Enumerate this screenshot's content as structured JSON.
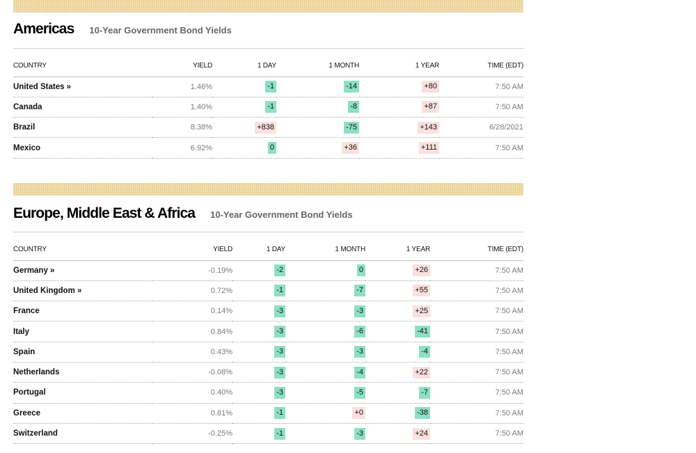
{
  "americas": {
    "title": "Americas",
    "subtitle": "10-Year Government Bond Yields",
    "headers": {
      "country": "COUNTRY",
      "yield": "YIELD",
      "day": "1 DAY",
      "month": "1 MONTH",
      "year": "1 YEAR",
      "time": "TIME (EDT)"
    },
    "rows": [
      {
        "country": "United States »",
        "yield": "1.46%",
        "day": "-1",
        "month": "-14",
        "year": "+80",
        "time": "7:50 AM"
      },
      {
        "country": "Canada",
        "yield": "1.40%",
        "day": "-1",
        "month": "-8",
        "year": "+87",
        "time": "7:50 AM"
      },
      {
        "country": "Brazil",
        "yield": "8.38%",
        "day": "+838",
        "month": "-75",
        "year": "+143",
        "time": "6/28/2021"
      },
      {
        "country": "Mexico",
        "yield": "6.92%",
        "day": "0",
        "month": "+36",
        "year": "+111",
        "time": "7:50 AM"
      }
    ]
  },
  "emea": {
    "title": "Europe, Middle East & Africa",
    "subtitle": "10-Year Government Bond Yields",
    "headers": {
      "country": "COUNTRY",
      "yield": "YIELD",
      "day": "1 DAY",
      "month": "1 MONTH",
      "year": "1 YEAR",
      "time": "TIME (EDT)"
    },
    "rows": [
      {
        "country": "Germany »",
        "yield": "-0.19%",
        "day": "-2",
        "month": "0",
        "year": "+26",
        "time": "7:50 AM"
      },
      {
        "country": "United Kingdom »",
        "yield": "0.72%",
        "day": "-1",
        "month": "-7",
        "year": "+55",
        "time": "7:50 AM"
      },
      {
        "country": "France",
        "yield": "0.14%",
        "day": "-3",
        "month": "-3",
        "year": "+25",
        "time": "7:50 AM"
      },
      {
        "country": "Italy",
        "yield": "0.84%",
        "day": "-3",
        "month": "-6",
        "year": "-41",
        "time": "7:50 AM"
      },
      {
        "country": "Spain",
        "yield": "0.43%",
        "day": "-3",
        "month": "-3",
        "year": "-4",
        "time": "7:50 AM"
      },
      {
        "country": "Netherlands",
        "yield": "-0.08%",
        "day": "-3",
        "month": "-4",
        "year": "+22",
        "time": "7:50 AM"
      },
      {
        "country": "Portugal",
        "yield": "0.40%",
        "day": "-3",
        "month": "-5",
        "year": "-7",
        "time": "7:50 AM"
      },
      {
        "country": "Greece",
        "yield": "0.81%",
        "day": "-1",
        "month": "+0",
        "year": "-38",
        "time": "7:50 AM"
      },
      {
        "country": "Switzerland",
        "yield": "-0.25%",
        "day": "-1",
        "month": "-3",
        "year": "+24",
        "time": "7:50 AM"
      }
    ]
  },
  "colors": {
    "negative_bg": "#8de0c3",
    "positive_bg": "#fbe0de",
    "banner": "#f3e3b8"
  }
}
